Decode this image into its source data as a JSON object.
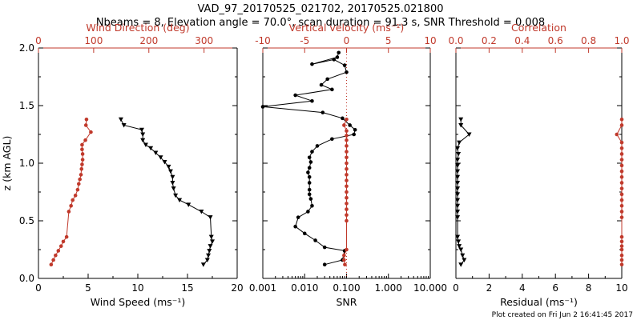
{
  "colors": {
    "black": "#000000",
    "red": "#c0392b",
    "background": "#ffffff"
  },
  "header": {
    "title": "VAD_97_20170525_021702, 20170525.021800",
    "subtitle": "Nbeams = 8, Elevation angle = 70.0°, scan duration = 91.3 s, SNR Threshold = 0.008"
  },
  "footer": {
    "note": "Plot created on Fri Jun  2 16:41:45 2017"
  },
  "chart_data": [
    {
      "type": "line",
      "name": "wind-panel",
      "ylabel": "z (km AGL)",
      "ylim": [
        0,
        2.0
      ],
      "yticks": [
        0.0,
        0.5,
        1.0,
        1.5,
        2.0
      ],
      "ytick_labels": [
        "0.0",
        "0.5",
        "1.0",
        "1.5",
        "2.0"
      ],
      "bottom_axis": {
        "label": "Wind Speed (ms⁻¹)",
        "xlim": [
          0,
          20
        ],
        "ticks": [
          0,
          5,
          10,
          15,
          20
        ],
        "tick_labels": [
          "0",
          "5",
          "10",
          "15",
          "20"
        ],
        "log": false
      },
      "top_axis": {
        "label": "Wind Direction (deg)",
        "xlim": [
          0,
          360
        ],
        "ticks": [
          0,
          100,
          200,
          300
        ],
        "tick_labels": [
          "0",
          "100",
          "200",
          "300"
        ],
        "log": false
      },
      "series": [
        {
          "name": "Wind Speed",
          "color": "black",
          "axis": "bottom",
          "marker": "triangle-down",
          "x": [
            16.6,
            17.0,
            17.1,
            17.2,
            17.3,
            17.5,
            17.4,
            17.3,
            16.4,
            15.1,
            14.2,
            13.8,
            13.6,
            13.5,
            13.5,
            13.3,
            13.1,
            12.7,
            12.3,
            11.8,
            11.3,
            10.8,
            10.5,
            10.5,
            10.4,
            8.6,
            8.3
          ],
          "y": [
            0.12,
            0.16,
            0.2,
            0.24,
            0.28,
            0.32,
            0.36,
            0.53,
            0.58,
            0.64,
            0.68,
            0.72,
            0.78,
            0.83,
            0.88,
            0.93,
            0.97,
            1.01,
            1.05,
            1.09,
            1.13,
            1.16,
            1.2,
            1.25,
            1.29,
            1.33,
            1.38
          ]
        },
        {
          "name": "Wind Direction",
          "color": "red",
          "axis": "top",
          "marker": "dot",
          "x": [
            23,
            27,
            31,
            36,
            41,
            45,
            51,
            55,
            59,
            62,
            67,
            71,
            73,
            75,
            77,
            78,
            79,
            80,
            80,
            79,
            79,
            85,
            95,
            86,
            87
          ],
          "y": [
            0.12,
            0.16,
            0.2,
            0.24,
            0.28,
            0.32,
            0.36,
            0.58,
            0.63,
            0.68,
            0.72,
            0.77,
            0.82,
            0.86,
            0.9,
            0.95,
            0.99,
            1.03,
            1.08,
            1.12,
            1.16,
            1.2,
            1.27,
            1.33,
            1.38
          ]
        }
      ]
    },
    {
      "type": "line",
      "name": "velocity-snr-panel",
      "ylim": [
        0,
        2.0
      ],
      "bottom_axis": {
        "label": "SNR",
        "xlim": [
          0.001,
          10
        ],
        "ticks": [
          0.001,
          0.01,
          0.1,
          1,
          10
        ],
        "tick_labels": [
          "0.001",
          "0.010",
          "0.100",
          "1.000",
          "10.000"
        ],
        "log": true
      },
      "top_axis": {
        "label": "Vertical velocity (ms⁻¹)",
        "xlim": [
          -10,
          10
        ],
        "ticks": [
          -10,
          -5,
          0,
          5,
          10
        ],
        "tick_labels": [
          "-10",
          "-5",
          "0",
          "5",
          "10"
        ],
        "log": false
      },
      "reference_line": {
        "axis": "bottom",
        "x": 0.1,
        "style": "dotted",
        "color": "red"
      },
      "series": [
        {
          "name": "SNR",
          "color": "black",
          "axis": "bottom",
          "marker": "dot",
          "x": [
            0.03,
            0.08,
            0.09,
            0.03,
            0.018,
            0.01,
            0.006,
            0.007,
            0.012,
            0.015,
            0.014,
            0.013,
            0.013,
            0.013,
            0.013,
            0.012,
            0.013,
            0.014,
            0.013,
            0.015,
            0.02,
            0.045,
            0.15,
            0.16,
            0.12,
            0.08,
            0.027,
            0.001,
            0.015,
            0.006,
            0.045,
            0.025,
            0.035,
            0.1,
            0.09,
            0.05,
            0.015,
            0.06,
            0.065
          ],
          "y": [
            0.12,
            0.16,
            0.24,
            0.27,
            0.33,
            0.39,
            0.45,
            0.53,
            0.58,
            0.63,
            0.69,
            0.73,
            0.77,
            0.83,
            0.88,
            0.92,
            0.96,
            1.01,
            1.05,
            1.1,
            1.15,
            1.21,
            1.25,
            1.29,
            1.33,
            1.39,
            1.44,
            1.49,
            1.54,
            1.59,
            1.64,
            1.68,
            1.73,
            1.79,
            1.85,
            1.9,
            1.86,
            1.92,
            1.96
          ]
        },
        {
          "name": "Vertical velocity",
          "color": "red",
          "axis": "top",
          "marker": "dot",
          "x": [
            -0.2,
            -0.3,
            -0.3,
            0.0,
            0.0,
            0.0,
            0.0,
            0.0,
            0.0,
            0.0,
            0.0,
            0.0,
            0.0,
            0.0,
            0.0,
            0.0,
            0.0,
            0.0,
            0.0,
            0.0,
            0.0,
            -0.3,
            0.0
          ],
          "y": [
            0.12,
            0.16,
            0.2,
            0.25,
            0.5,
            0.55,
            0.6,
            0.65,
            0.7,
            0.75,
            0.8,
            0.85,
            0.9,
            0.95,
            1.0,
            1.05,
            1.1,
            1.15,
            1.2,
            1.24,
            1.28,
            1.33,
            1.38
          ]
        }
      ]
    },
    {
      "type": "line",
      "name": "residual-correlation-panel",
      "ylim": [
        0,
        2.0
      ],
      "bottom_axis": {
        "label": "Residual (ms⁻¹)",
        "xlim": [
          0,
          10
        ],
        "ticks": [
          0,
          2,
          4,
          6,
          8,
          10
        ],
        "tick_labels": [
          "0",
          "2",
          "4",
          "6",
          "8",
          "10"
        ],
        "log": false
      },
      "top_axis": {
        "label": "Correlation",
        "xlim": [
          0,
          1.0
        ],
        "ticks": [
          0.0,
          0.2,
          0.4,
          0.6,
          0.8,
          1.0
        ],
        "tick_labels": [
          "0.0",
          "0.2",
          "0.4",
          "0.6",
          "0.8",
          "1.0"
        ],
        "log": false
      },
      "series": [
        {
          "name": "Residual",
          "color": "black",
          "axis": "bottom",
          "marker": "triangle-down",
          "x": [
            0.3,
            0.5,
            0.4,
            0.3,
            0.2,
            0.15,
            0.1,
            0.1,
            0.1,
            0.1,
            0.1,
            0.1,
            0.1,
            0.1,
            0.1,
            0.1,
            0.1,
            0.1,
            0.15,
            0.1,
            0.2,
            0.8,
            0.3,
            0.3
          ],
          "y": [
            0.12,
            0.16,
            0.2,
            0.25,
            0.28,
            0.32,
            0.36,
            0.53,
            0.58,
            0.63,
            0.68,
            0.73,
            0.78,
            0.83,
            0.88,
            0.93,
            0.98,
            1.03,
            1.08,
            1.13,
            1.18,
            1.25,
            1.33,
            1.38
          ]
        },
        {
          "name": "Correlation",
          "color": "red",
          "axis": "top",
          "marker": "dot",
          "x": [
            1.0,
            1.0,
            1.0,
            1.0,
            1.0,
            1.0,
            1.0,
            1.0,
            1.0,
            1.0,
            1.0,
            1.0,
            1.0,
            1.0,
            1.0,
            1.0,
            1.0,
            1.0,
            1.0,
            1.0,
            1.0,
            0.97,
            1.0,
            1.0
          ],
          "y": [
            0.12,
            0.16,
            0.2,
            0.25,
            0.28,
            0.32,
            0.36,
            0.53,
            0.58,
            0.63,
            0.68,
            0.73,
            0.78,
            0.83,
            0.88,
            0.93,
            0.98,
            1.03,
            1.08,
            1.13,
            1.18,
            1.25,
            1.33,
            1.38
          ]
        }
      ]
    }
  ]
}
